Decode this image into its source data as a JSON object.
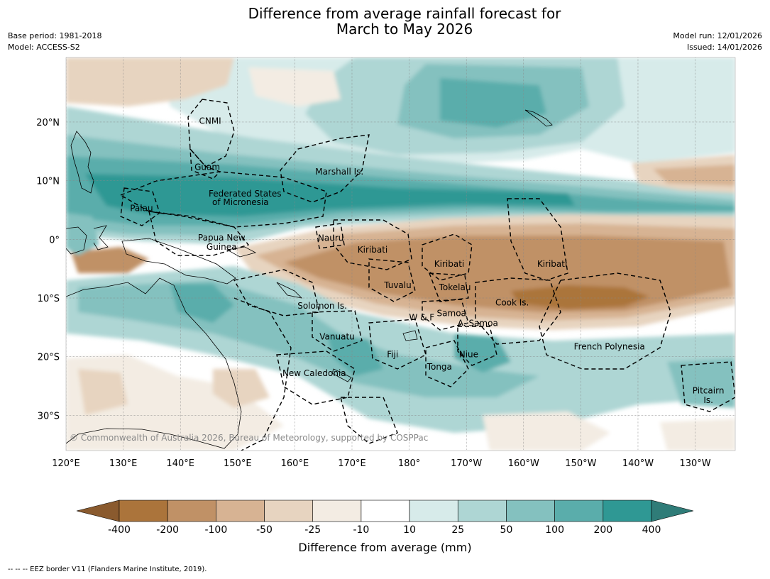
{
  "header": {
    "title_line1": "Difference from average rainfall forecast for",
    "title_line2": "March to May 2026",
    "base_period": "Base period: 1981-2018",
    "model": "Model: ACCESS-S2",
    "model_run": "Model run: 12/01/2026",
    "issued": "Issued: 14/01/2026"
  },
  "map": {
    "extent": {
      "lon_min": 120,
      "lon_max": 237,
      "lat_min": -36,
      "lat_max": 31
    },
    "lon_ticks": [
      {
        "lon": 120,
        "label": "120°E"
      },
      {
        "lon": 130,
        "label": "130°E"
      },
      {
        "lon": 140,
        "label": "140°E"
      },
      {
        "lon": 150,
        "label": "150°E"
      },
      {
        "lon": 160,
        "label": "160°E"
      },
      {
        "lon": 170,
        "label": "170°E"
      },
      {
        "lon": 180,
        "label": "180°"
      },
      {
        "lon": 190,
        "label": "170°W"
      },
      {
        "lon": 200,
        "label": "160°W"
      },
      {
        "lon": 210,
        "label": "150°W"
      },
      {
        "lon": 220,
        "label": "140°W"
      },
      {
        "lon": 230,
        "label": "130°W"
      }
    ],
    "lat_ticks": [
      {
        "lat": 20,
        "label": "20°N"
      },
      {
        "lat": 10,
        "label": "10°N"
      },
      {
        "lat": 0,
        "label": "0°"
      },
      {
        "lat": -10,
        "label": "10°S"
      },
      {
        "lat": -20,
        "label": "20°S"
      },
      {
        "lat": -30,
        "label": "30°S"
      }
    ],
    "region_labels": [
      {
        "text": "CNMI",
        "lon": 145.2,
        "lat": 20.2
      },
      {
        "text": "Guam",
        "lon": 144.7,
        "lat": 12.3
      },
      {
        "text": "Marshall Is.",
        "lon": 167.8,
        "lat": 11.5
      },
      {
        "text": "Federated States",
        "lon": 151.3,
        "lat": 7.8
      },
      {
        "text": "of Micronesia",
        "lon": 150.5,
        "lat": 6.3
      },
      {
        "text": "Palau",
        "lon": 133.2,
        "lat": 5.3
      },
      {
        "text": "Papua New",
        "lon": 147.2,
        "lat": 0.3
      },
      {
        "text": "Guinea",
        "lon": 147.2,
        "lat": -1.3
      },
      {
        "text": "Nauru",
        "lon": 166.3,
        "lat": 0.2
      },
      {
        "text": "Kiribati",
        "lon": 173.6,
        "lat": -1.8
      },
      {
        "text": "Kiribati",
        "lon": 187.0,
        "lat": -4.2
      },
      {
        "text": "Kiribati",
        "lon": 205.0,
        "lat": -4.2
      },
      {
        "text": "Tuvalu",
        "lon": 178.0,
        "lat": -7.8
      },
      {
        "text": "Tokelau",
        "lon": 188.0,
        "lat": -8.2
      },
      {
        "text": "Cook Is.",
        "lon": 198.0,
        "lat": -10.8
      },
      {
        "text": "Solomon Is.",
        "lon": 164.8,
        "lat": -11.3
      },
      {
        "text": "Samoa",
        "lon": 187.4,
        "lat": -12.6
      },
      {
        "text": "W & F",
        "lon": 182.2,
        "lat": -13.3
      },
      {
        "text": "A. Samoa",
        "lon": 192.0,
        "lat": -14.3
      },
      {
        "text": "Vanuatu",
        "lon": 167.4,
        "lat": -16.6
      },
      {
        "text": "Fiji",
        "lon": 177.1,
        "lat": -19.6
      },
      {
        "text": "Niue",
        "lon": 190.4,
        "lat": -19.6
      },
      {
        "text": "French Polynesia",
        "lon": 215.0,
        "lat": -18.3
      },
      {
        "text": "Tonga",
        "lon": 185.3,
        "lat": -21.7
      },
      {
        "text": "New Caledonia",
        "lon": 163.4,
        "lat": -22.8
      },
      {
        "text": "Pitcairn",
        "lon": 232.3,
        "lat": -25.8
      },
      {
        "text": "Is.",
        "lon": 232.3,
        "lat": -27.4
      }
    ],
    "copyright": "© Commonwealth of Australia 2026, Bureau of Meteorology, supported by COSPPac"
  },
  "colorbar": {
    "label": "Difference from average (mm)",
    "tick_labels": [
      "-400",
      "-200",
      "-100",
      "-50",
      "-25",
      "-10",
      "10",
      "25",
      "50",
      "100",
      "200",
      "400"
    ],
    "colors": {
      "extend_low": "#8a5a2e",
      "bins": [
        "#ab743b",
        "#c09166",
        "#d7b393",
        "#e7d4c0",
        "#f3ece3",
        "#ffffff",
        "#d7ebea",
        "#aed6d4",
        "#84c1bf",
        "#5aadab",
        "#2f9894"
      ],
      "extend_high": "#2f7c78"
    }
  },
  "footnote": "--  --  -- EEZ border V11 (Flanders Marine Institute, 2019)."
}
